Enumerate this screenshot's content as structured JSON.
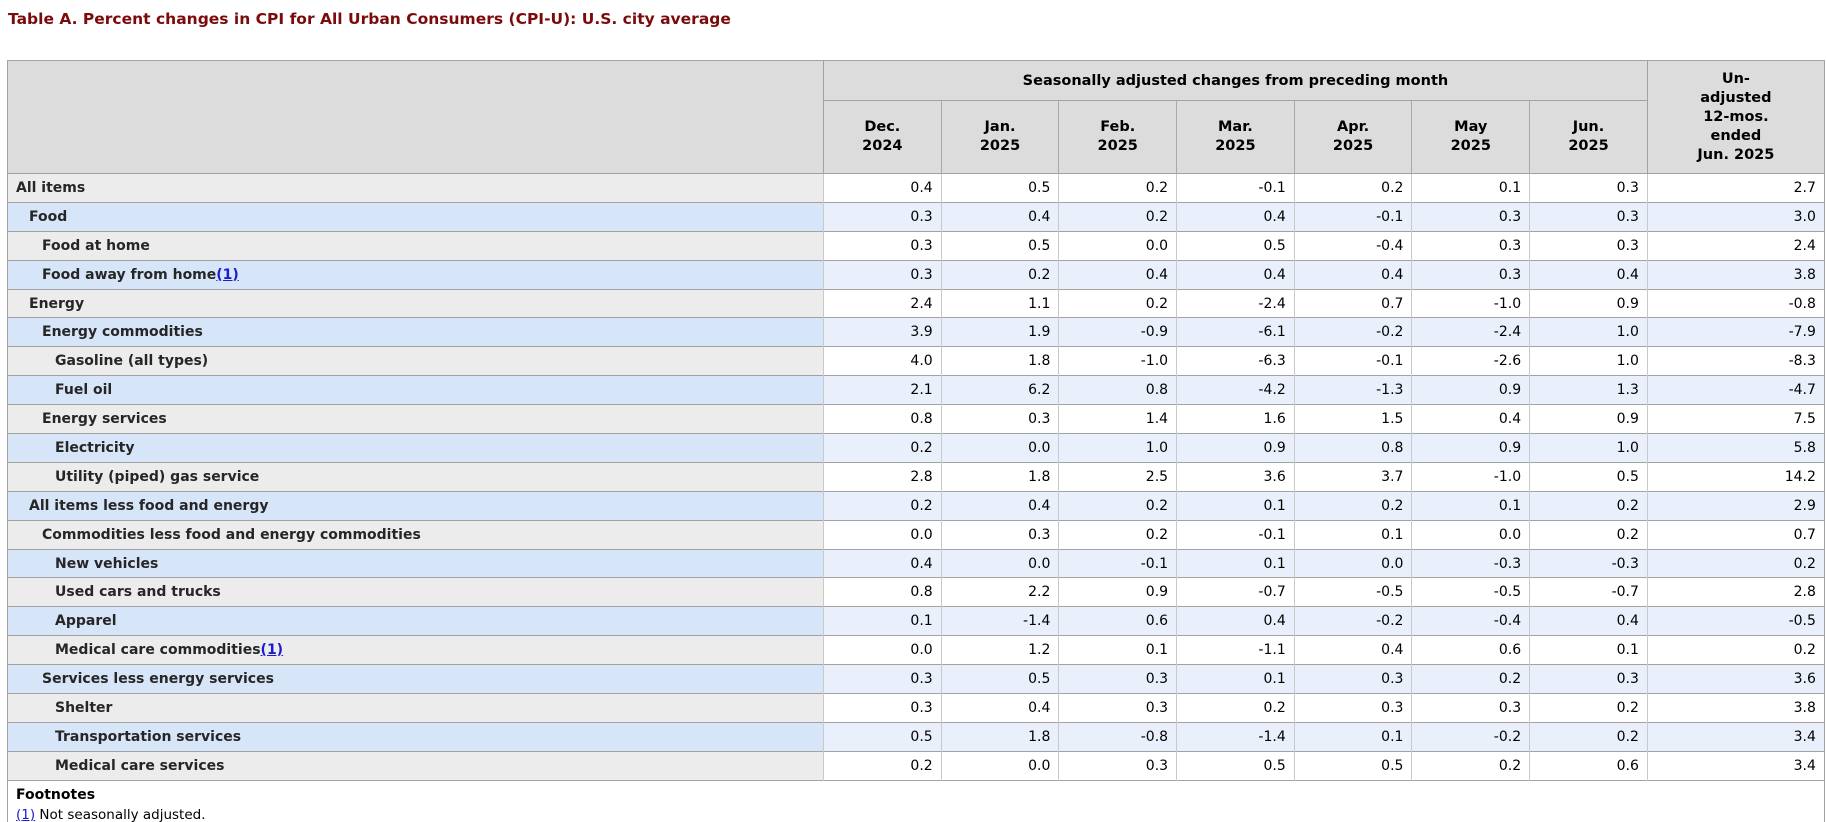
{
  "page_title": "Table A. Percent changes in CPI for All Urban Consumers (CPI-U): U.S. city average",
  "colors": {
    "title_maroon": "#7b0a0a",
    "header_bg": "#dcdcdc",
    "stub_gray": "#ececec",
    "stub_blue": "#d7e5f8",
    "data_blue": "#e9f0fb",
    "link_blue": "#1b1bd1",
    "border_dark": "#a2a2a2",
    "border_light": "#c9c9c9"
  },
  "table": {
    "header": {
      "group_label": "Seasonally adjusted changes from preceding month",
      "unadjusted_label": "Un-\nadjusted\n12-mos.\nended\nJun. 2025",
      "months": [
        "Dec.\n2024",
        "Jan.\n2025",
        "Feb.\n2025",
        "Mar.\n2025",
        "Apr.\n2025",
        "May\n2025",
        "Jun.\n2025"
      ]
    },
    "rows": [
      {
        "label": "All items",
        "indent": 0,
        "footnote_ref": "",
        "values": [
          "0.4",
          "0.5",
          "0.2",
          "-0.1",
          "0.2",
          "0.1",
          "0.3",
          "2.7"
        ]
      },
      {
        "label": "Food",
        "indent": 1,
        "footnote_ref": "",
        "values": [
          "0.3",
          "0.4",
          "0.2",
          "0.4",
          "-0.1",
          "0.3",
          "0.3",
          "3.0"
        ]
      },
      {
        "label": "Food at home",
        "indent": 2,
        "footnote_ref": "",
        "values": [
          "0.3",
          "0.5",
          "0.0",
          "0.5",
          "-0.4",
          "0.3",
          "0.3",
          "2.4"
        ]
      },
      {
        "label": "Food away from home",
        "indent": 2,
        "footnote_ref": "(1)",
        "values": [
          "0.3",
          "0.2",
          "0.4",
          "0.4",
          "0.4",
          "0.3",
          "0.4",
          "3.8"
        ]
      },
      {
        "label": "Energy",
        "indent": 1,
        "footnote_ref": "",
        "values": [
          "2.4",
          "1.1",
          "0.2",
          "-2.4",
          "0.7",
          "-1.0",
          "0.9",
          "-0.8"
        ]
      },
      {
        "label": "Energy commodities",
        "indent": 2,
        "footnote_ref": "",
        "values": [
          "3.9",
          "1.9",
          "-0.9",
          "-6.1",
          "-0.2",
          "-2.4",
          "1.0",
          "-7.9"
        ]
      },
      {
        "label": "Gasoline (all types)",
        "indent": 3,
        "footnote_ref": "",
        "values": [
          "4.0",
          "1.8",
          "-1.0",
          "-6.3",
          "-0.1",
          "-2.6",
          "1.0",
          "-8.3"
        ]
      },
      {
        "label": "Fuel oil",
        "indent": 3,
        "footnote_ref": "",
        "values": [
          "2.1",
          "6.2",
          "0.8",
          "-4.2",
          "-1.3",
          "0.9",
          "1.3",
          "-4.7"
        ]
      },
      {
        "label": "Energy services",
        "indent": 2,
        "footnote_ref": "",
        "values": [
          "0.8",
          "0.3",
          "1.4",
          "1.6",
          "1.5",
          "0.4",
          "0.9",
          "7.5"
        ]
      },
      {
        "label": "Electricity",
        "indent": 3,
        "footnote_ref": "",
        "values": [
          "0.2",
          "0.0",
          "1.0",
          "0.9",
          "0.8",
          "0.9",
          "1.0",
          "5.8"
        ]
      },
      {
        "label": "Utility (piped) gas service",
        "indent": 3,
        "footnote_ref": "",
        "values": [
          "2.8",
          "1.8",
          "2.5",
          "3.6",
          "3.7",
          "-1.0",
          "0.5",
          "14.2"
        ]
      },
      {
        "label": "All items less food and energy",
        "indent": 1,
        "footnote_ref": "",
        "values": [
          "0.2",
          "0.4",
          "0.2",
          "0.1",
          "0.2",
          "0.1",
          "0.2",
          "2.9"
        ]
      },
      {
        "label": "Commodities less food and energy commodities",
        "indent": 2,
        "footnote_ref": "",
        "values": [
          "0.0",
          "0.3",
          "0.2",
          "-0.1",
          "0.1",
          "0.0",
          "0.2",
          "0.7"
        ]
      },
      {
        "label": "New vehicles",
        "indent": 3,
        "footnote_ref": "",
        "values": [
          "0.4",
          "0.0",
          "-0.1",
          "0.1",
          "0.0",
          "-0.3",
          "-0.3",
          "0.2"
        ]
      },
      {
        "label": "Used cars and trucks",
        "indent": 3,
        "footnote_ref": "",
        "values": [
          "0.8",
          "2.2",
          "0.9",
          "-0.7",
          "-0.5",
          "-0.5",
          "-0.7",
          "2.8"
        ]
      },
      {
        "label": "Apparel",
        "indent": 3,
        "footnote_ref": "",
        "values": [
          "0.1",
          "-1.4",
          "0.6",
          "0.4",
          "-0.2",
          "-0.4",
          "0.4",
          "-0.5"
        ]
      },
      {
        "label": "Medical care commodities",
        "indent": 3,
        "footnote_ref": "(1)",
        "values": [
          "0.0",
          "1.2",
          "0.1",
          "-1.1",
          "0.4",
          "0.6",
          "0.1",
          "0.2"
        ]
      },
      {
        "label": "Services less energy services",
        "indent": 2,
        "footnote_ref": "",
        "values": [
          "0.3",
          "0.5",
          "0.3",
          "0.1",
          "0.3",
          "0.2",
          "0.3",
          "3.6"
        ]
      },
      {
        "label": "Shelter",
        "indent": 3,
        "footnote_ref": "",
        "values": [
          "0.3",
          "0.4",
          "0.3",
          "0.2",
          "0.3",
          "0.3",
          "0.2",
          "3.8"
        ]
      },
      {
        "label": "Transportation services",
        "indent": 3,
        "footnote_ref": "",
        "values": [
          "0.5",
          "1.8",
          "-0.8",
          "-1.4",
          "0.1",
          "-0.2",
          "0.2",
          "3.4"
        ]
      },
      {
        "label": "Medical care services",
        "indent": 3,
        "footnote_ref": "",
        "values": [
          "0.2",
          "0.0",
          "0.3",
          "0.5",
          "0.5",
          "0.2",
          "0.6",
          "3.4"
        ]
      }
    ],
    "footnotes": {
      "heading": "Footnotes",
      "items": [
        {
          "ref": "(1)",
          "text": "Not seasonally adjusted."
        }
      ]
    }
  }
}
